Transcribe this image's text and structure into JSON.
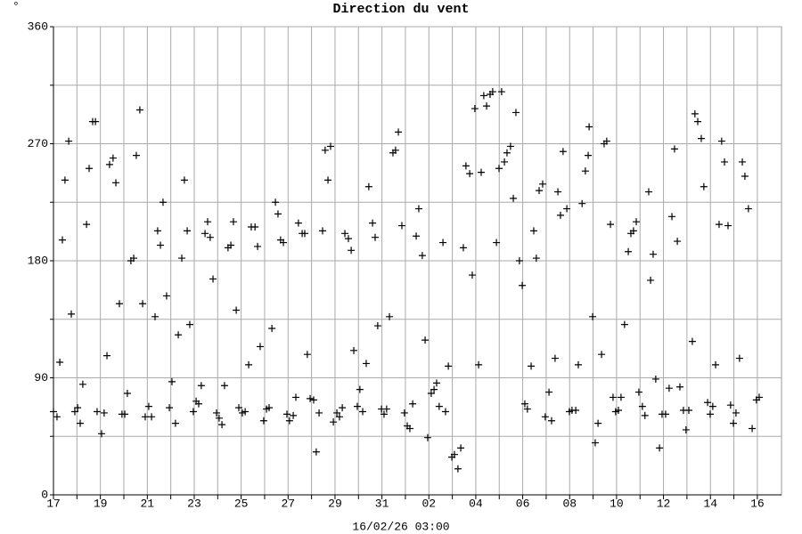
{
  "chart_data": {
    "type": "scatter",
    "title": "Direction du vent",
    "y_label": "°",
    "x_label": "16/02/26 03:00",
    "color": "#000000",
    "grid": true,
    "xlim": [
      0,
      31.03
    ],
    "ylim": [
      0,
      360
    ],
    "xticks": [
      {
        "value": 0,
        "label": "17"
      },
      {
        "value": 1,
        "label": null
      },
      {
        "value": 2,
        "label": "19"
      },
      {
        "value": 3,
        "label": null
      },
      {
        "value": 4,
        "label": "21"
      },
      {
        "value": 5,
        "label": null
      },
      {
        "value": 6,
        "label": "23"
      },
      {
        "value": 7,
        "label": null
      },
      {
        "value": 8,
        "label": "25"
      },
      {
        "value": 9,
        "label": null
      },
      {
        "value": 10,
        "label": "27"
      },
      {
        "value": 11,
        "label": null
      },
      {
        "value": 12,
        "label": "29"
      },
      {
        "value": 13,
        "label": null
      },
      {
        "value": 14,
        "label": "31"
      },
      {
        "value": 15,
        "label": null
      },
      {
        "value": 16,
        "label": "02"
      },
      {
        "value": 17,
        "label": null
      },
      {
        "value": 18,
        "label": "04"
      },
      {
        "value": 19,
        "label": null
      },
      {
        "value": 20,
        "label": "06"
      },
      {
        "value": 21,
        "label": null
      },
      {
        "value": 22,
        "label": "08"
      },
      {
        "value": 23,
        "label": null
      },
      {
        "value": 24,
        "label": "10"
      },
      {
        "value": 25,
        "label": null
      },
      {
        "value": 26,
        "label": "12"
      },
      {
        "value": 27,
        "label": null
      },
      {
        "value": 28,
        "label": "14"
      },
      {
        "value": 29,
        "label": null
      },
      {
        "value": 30,
        "label": "16"
      }
    ],
    "yticks": [
      0,
      {
        "value": 45,
        "label": null
      },
      90,
      {
        "value": 135,
        "label": null
      },
      180,
      {
        "value": 225,
        "label": null
      },
      270,
      {
        "value": 315,
        "label": null
      },
      360
    ],
    "x": [
      0.0,
      0.15,
      0.27,
      0.38,
      0.49,
      0.65,
      0.76,
      0.91,
      1.03,
      1.14,
      1.25,
      1.41,
      1.52,
      1.67,
      1.79,
      1.86,
      2.05,
      2.16,
      2.28,
      2.39,
      2.54,
      2.66,
      2.81,
      2.92,
      3.04,
      3.15,
      3.3,
      3.42,
      3.53,
      3.68,
      3.8,
      3.91,
      4.06,
      4.18,
      4.33,
      4.44,
      4.56,
      4.67,
      4.82,
      4.94,
      5.05,
      5.2,
      5.32,
      5.47,
      5.58,
      5.7,
      5.81,
      5.96,
      6.08,
      6.19,
      6.3,
      6.46,
      6.57,
      6.68,
      6.8,
      6.95,
      7.06,
      7.18,
      7.29,
      7.44,
      7.56,
      7.67,
      7.79,
      7.9,
      8.05,
      8.17,
      8.32,
      8.43,
      8.59,
      8.7,
      8.81,
      8.96,
      9.08,
      9.19,
      9.31,
      9.46,
      9.57,
      9.68,
      9.8,
      9.95,
      10.06,
      10.22,
      10.33,
      10.44,
      10.6,
      10.71,
      10.82,
      10.94,
      11.09,
      11.2,
      11.32,
      11.47,
      11.58,
      11.7,
      11.81,
      11.93,
      12.08,
      12.19,
      12.31,
      12.42,
      12.57,
      12.69,
      12.8,
      12.95,
      13.06,
      13.18,
      13.33,
      13.44,
      13.6,
      13.71,
      13.82,
      13.98,
      14.09,
      14.2,
      14.32,
      14.47,
      14.58,
      14.7,
      14.85,
      14.96,
      15.08,
      15.19,
      15.31,
      15.46,
      15.57,
      15.72,
      15.84,
      15.95,
      16.1,
      16.22,
      16.33,
      16.44,
      16.6,
      16.71,
      16.83,
      16.98,
      17.09,
      17.24,
      17.36,
      17.47,
      17.58,
      17.74,
      17.85,
      17.96,
      18.12,
      18.23,
      18.34,
      18.46,
      18.61,
      18.72,
      18.88,
      18.99,
      19.1,
      19.22,
      19.33,
      19.48,
      19.6,
      19.71,
      19.86,
      19.98,
      20.09,
      20.2,
      20.36,
      20.47,
      20.58,
      20.7,
      20.85,
      20.96,
      21.12,
      21.23,
      21.38,
      21.5,
      21.61,
      21.72,
      21.88,
      21.99,
      22.1,
      22.26,
      22.37,
      22.53,
      22.67,
      22.79,
      22.83,
      22.98,
      23.09,
      23.21,
      23.36,
      23.47,
      23.58,
      23.74,
      23.85,
      23.96,
      24.08,
      24.19,
      24.34,
      24.5,
      24.61,
      24.72,
      24.84,
      24.95,
      25.1,
      25.21,
      25.37,
      25.45,
      25.56,
      25.67,
      25.83,
      25.94,
      26.09,
      26.24,
      26.36,
      26.47,
      26.59,
      26.7,
      26.85,
      26.96,
      27.08,
      27.23,
      27.34,
      27.46,
      27.61,
      27.72,
      27.88,
      27.99,
      28.1,
      28.22,
      28.37,
      28.48,
      28.6,
      28.75,
      28.86,
      28.98,
      29.09,
      29.24,
      29.36,
      29.47,
      29.62,
      29.78,
      29.96,
      30.08
    ],
    "values": [
      64,
      60,
      102,
      196,
      242,
      272,
      139,
      64,
      67,
      55,
      85,
      208,
      251,
      287,
      287,
      64,
      47,
      63,
      107,
      254,
      259,
      240,
      147,
      62,
      62,
      78,
      180,
      182,
      261,
      296,
      147,
      60,
      68,
      60,
      137,
      203,
      192,
      225,
      153,
      67,
      87,
      55,
      123,
      182,
      242,
      203,
      131,
      64,
      72,
      70,
      84,
      201,
      210,
      198,
      166,
      63,
      59,
      54,
      84,
      190,
      192,
      210,
      142,
      67,
      63,
      64,
      100,
      206,
      206,
      191,
      114,
      57,
      66,
      67,
      128,
      225,
      216,
      196,
      194,
      62,
      57,
      61,
      75,
      209,
      201,
      201,
      108,
      74,
      73,
      33,
      63,
      203,
      265,
      242,
      268,
      56,
      63,
      60,
      67,
      201,
      197,
      188,
      111,
      68,
      81,
      64,
      101,
      237,
      209,
      198,
      130,
      66,
      62,
      66,
      137,
      263,
      265,
      279,
      207,
      63,
      53,
      51,
      70,
      199,
      220,
      184,
      119,
      44,
      78,
      81,
      86,
      68,
      194,
      64,
      99,
      29,
      31,
      20,
      36,
      190,
      253,
      247,
      169,
      297,
      100,
      248,
      307,
      299,
      308,
      310,
      194,
      251,
      310,
      256,
      263,
      268,
      228,
      294,
      180,
      161,
      70,
      66,
      99,
      203,
      182,
      234,
      239,
      60,
      79,
      57,
      105,
      233,
      215,
      264,
      220,
      64,
      65,
      65,
      100,
      224,
      249,
      261,
      283,
      137,
      40,
      55,
      108,
      270,
      272,
      208,
      75,
      64,
      65,
      75,
      131,
      187,
      201,
      203,
      210,
      79,
      68,
      61,
      233,
      165,
      185,
      89,
      36,
      62,
      62,
      82,
      214,
      266,
      195,
      83,
      65,
      50,
      65,
      118,
      293,
      287,
      274,
      237,
      71,
      62,
      68,
      100,
      208,
      272,
      256,
      207,
      69,
      55,
      63,
      105,
      256,
      245,
      220,
      51,
      73,
      75
    ]
  }
}
